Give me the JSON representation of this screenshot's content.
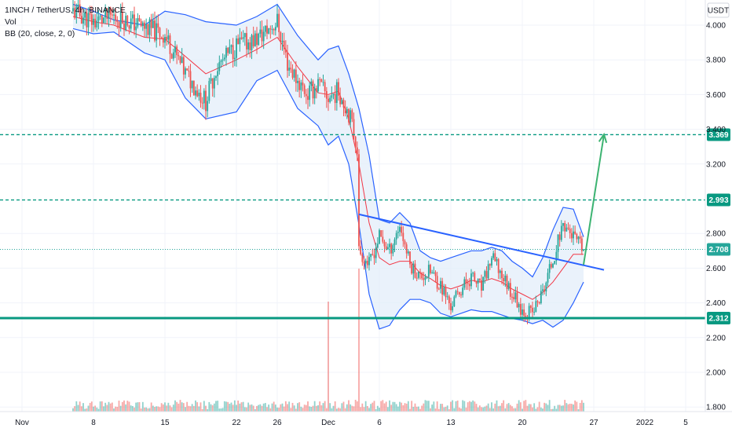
{
  "legend": {
    "symbol": "1INCH / TetherUS, 4h, BINANCE",
    "volume": "Vol",
    "indicator": "BB (20, close, 2, 0)"
  },
  "price_axis": {
    "currency": "USDT",
    "ticks": [
      "4.000",
      "3.800",
      "3.600",
      "3.400",
      "3.200",
      "2.800",
      "2.600",
      "2.400",
      "2.200",
      "2.000",
      "1.800"
    ]
  },
  "date_axis": {
    "ticks": [
      "Nov",
      "8",
      "15",
      "22",
      "26",
      "Dec",
      "6",
      "13",
      "20",
      "27",
      "2022",
      "5"
    ]
  },
  "colors": {
    "up": "#26a69a",
    "down": "#ef5350",
    "bb_band": "#2962ff",
    "bb_basis": "#f23645",
    "bb_fill": "#e3edf9",
    "level_line": "#089981",
    "trendline": "#2962ff",
    "arrow": "#3cb371",
    "current_tag": "#26a69a"
  },
  "chart_data": {
    "type": "candlestick",
    "title": "1INCH / TetherUS, 4h, BINANCE",
    "indicator": "Bollinger Bands (20, close, 2, 0)",
    "ylim": [
      1.77,
      4.07
    ],
    "x_range": [
      "2021-11-01",
      "2022-01-09"
    ],
    "x_ticks": [
      "2021-11-01",
      "2021-11-08",
      "2021-11-15",
      "2021-11-22",
      "2021-11-26",
      "2021-12-01",
      "2021-12-06",
      "2021-12-13",
      "2021-12-20",
      "2021-12-27",
      "2022-01-01",
      "2022-01-05"
    ],
    "price_levels": [
      {
        "label": "3.369",
        "value": 3.369,
        "style": "dashed"
      },
      {
        "label": "2.993",
        "value": 2.993,
        "style": "dashed"
      },
      {
        "label": "2.708",
        "value": 2.708,
        "style": "dotted",
        "current_price": true
      },
      {
        "label": "2.312",
        "value": 2.312,
        "style": "solid"
      }
    ],
    "trendline": {
      "start": [
        "2021-12-04",
        2.91
      ],
      "end": [
        "2021-12-28",
        2.59
      ]
    },
    "projection_arrow": {
      "start": [
        "2021-12-26",
        2.62
      ],
      "end": [
        "2021-12-28",
        3.37
      ]
    },
    "price_path": [
      [
        "2021-11-06",
        4.08
      ],
      [
        "2021-11-08",
        4.02
      ],
      [
        "2021-11-10",
        4.05
      ],
      [
        "2021-11-13",
        3.99
      ],
      [
        "2021-11-15",
        3.94
      ],
      [
        "2021-11-17",
        3.72
      ],
      [
        "2021-11-19",
        3.56
      ],
      [
        "2021-11-20",
        3.75
      ],
      [
        "2021-11-22",
        3.88
      ],
      [
        "2021-11-24",
        3.92
      ],
      [
        "2021-11-26",
        4.02
      ],
      [
        "2021-11-27",
        3.78
      ],
      [
        "2021-11-28",
        3.68
      ],
      [
        "2021-11-29",
        3.6
      ],
      [
        "2021-11-30",
        3.66
      ],
      [
        "2021-12-01",
        3.58
      ],
      [
        "2021-12-02",
        3.62
      ],
      [
        "2021-12-03",
        3.5
      ],
      [
        "2021-12-04",
        3.26
      ],
      [
        "2021-12-04",
        2.7
      ],
      [
        "2021-12-05",
        2.62
      ],
      [
        "2021-12-06",
        2.78
      ],
      [
        "2021-12-07",
        2.7
      ],
      [
        "2021-12-08",
        2.85
      ],
      [
        "2021-12-09",
        2.62
      ],
      [
        "2021-12-10",
        2.55
      ],
      [
        "2021-12-11",
        2.58
      ],
      [
        "2021-12-12",
        2.5
      ],
      [
        "2021-12-13",
        2.38
      ],
      [
        "2021-12-14",
        2.48
      ],
      [
        "2021-12-15",
        2.55
      ],
      [
        "2021-12-16",
        2.48
      ],
      [
        "2021-12-17",
        2.66
      ],
      [
        "2021-12-18",
        2.56
      ],
      [
        "2021-12-19",
        2.46
      ],
      [
        "2021-12-20",
        2.36
      ],
      [
        "2021-12-21",
        2.34
      ],
      [
        "2021-12-22",
        2.46
      ],
      [
        "2021-12-23",
        2.65
      ],
      [
        "2021-12-24",
        2.86
      ],
      [
        "2021-12-25",
        2.78
      ],
      [
        "2021-12-26",
        2.7
      ]
    ],
    "bb_upper_path": [
      [
        "2021-11-06",
        4.12
      ],
      [
        "2021-11-08",
        4.08
      ],
      [
        "2021-11-10",
        4.03
      ],
      [
        "2021-11-13",
        4.0
      ],
      [
        "2021-11-15",
        4.08
      ],
      [
        "2021-11-17",
        4.06
      ],
      [
        "2021-11-19",
        4.02
      ],
      [
        "2021-11-22",
        4.0
      ],
      [
        "2021-11-24",
        4.05
      ],
      [
        "2021-11-26",
        4.12
      ],
      [
        "2021-11-28",
        3.94
      ],
      [
        "2021-11-30",
        3.8
      ],
      [
        "2021-12-01",
        3.86
      ],
      [
        "2021-12-02",
        3.88
      ],
      [
        "2021-12-03",
        3.72
      ],
      [
        "2021-12-04",
        3.52
      ],
      [
        "2021-12-05",
        3.25
      ],
      [
        "2021-12-06",
        2.88
      ],
      [
        "2021-12-07",
        2.86
      ],
      [
        "2021-12-08",
        2.92
      ],
      [
        "2021-12-09",
        2.86
      ],
      [
        "2021-12-10",
        2.7
      ],
      [
        "2021-12-11",
        2.66
      ],
      [
        "2021-12-12",
        2.64
      ],
      [
        "2021-12-13",
        2.66
      ],
      [
        "2021-12-14",
        2.68
      ],
      [
        "2021-12-15",
        2.7
      ],
      [
        "2021-12-16",
        2.7
      ],
      [
        "2021-12-17",
        2.72
      ],
      [
        "2021-12-18",
        2.7
      ],
      [
        "2021-12-19",
        2.64
      ],
      [
        "2021-12-20",
        2.6
      ],
      [
        "2021-12-21",
        2.55
      ],
      [
        "2021-12-22",
        2.66
      ],
      [
        "2021-12-23",
        2.82
      ],
      [
        "2021-12-24",
        2.95
      ],
      [
        "2021-12-25",
        2.94
      ],
      [
        "2021-12-26",
        2.78
      ]
    ],
    "bb_lower_path": [
      [
        "2021-11-06",
        3.98
      ],
      [
        "2021-11-08",
        3.95
      ],
      [
        "2021-11-10",
        3.96
      ],
      [
        "2021-11-13",
        3.84
      ],
      [
        "2021-11-15",
        3.8
      ],
      [
        "2021-11-17",
        3.58
      ],
      [
        "2021-11-19",
        3.46
      ],
      [
        "2021-11-22",
        3.5
      ],
      [
        "2021-11-24",
        3.68
      ],
      [
        "2021-11-26",
        3.74
      ],
      [
        "2021-11-28",
        3.52
      ],
      [
        "2021-11-30",
        3.42
      ],
      [
        "2021-12-01",
        3.31
      ],
      [
        "2021-12-02",
        3.36
      ],
      [
        "2021-12-03",
        3.2
      ],
      [
        "2021-12-04",
        2.85
      ],
      [
        "2021-12-05",
        2.45
      ],
      [
        "2021-12-06",
        2.25
      ],
      [
        "2021-12-07",
        2.27
      ],
      [
        "2021-12-08",
        2.36
      ],
      [
        "2021-12-09",
        2.42
      ],
      [
        "2021-12-10",
        2.42
      ],
      [
        "2021-12-11",
        2.4
      ],
      [
        "2021-12-12",
        2.34
      ],
      [
        "2021-12-13",
        2.32
      ],
      [
        "2021-12-14",
        2.34
      ],
      [
        "2021-12-15",
        2.36
      ],
      [
        "2021-12-16",
        2.35
      ],
      [
        "2021-12-17",
        2.35
      ],
      [
        "2021-12-18",
        2.33
      ],
      [
        "2021-12-19",
        2.31
      ],
      [
        "2021-12-20",
        2.3
      ],
      [
        "2021-12-21",
        2.28
      ],
      [
        "2021-12-22",
        2.3
      ],
      [
        "2021-12-23",
        2.26
      ],
      [
        "2021-12-24",
        2.3
      ],
      [
        "2021-12-25",
        2.4
      ],
      [
        "2021-12-26",
        2.52
      ]
    ],
    "bb_basis_path": [
      [
        "2021-11-06",
        4.05
      ],
      [
        "2021-11-08",
        4.02
      ],
      [
        "2021-11-10",
        4.0
      ],
      [
        "2021-11-13",
        3.93
      ],
      [
        "2021-11-15",
        3.92
      ],
      [
        "2021-11-17",
        3.82
      ],
      [
        "2021-11-19",
        3.72
      ],
      [
        "2021-11-22",
        3.8
      ],
      [
        "2021-11-24",
        3.86
      ],
      [
        "2021-11-26",
        3.93
      ],
      [
        "2021-11-28",
        3.76
      ],
      [
        "2021-11-30",
        3.61
      ],
      [
        "2021-12-01",
        3.6
      ],
      [
        "2021-12-02",
        3.62
      ],
      [
        "2021-12-03",
        3.46
      ],
      [
        "2021-12-04",
        3.2
      ],
      [
        "2021-12-05",
        2.86
      ],
      [
        "2021-12-06",
        2.66
      ],
      [
        "2021-12-07",
        2.62
      ],
      [
        "2021-12-08",
        2.64
      ],
      [
        "2021-12-09",
        2.64
      ],
      [
        "2021-12-10",
        2.57
      ],
      [
        "2021-12-11",
        2.54
      ],
      [
        "2021-12-12",
        2.5
      ],
      [
        "2021-12-13",
        2.48
      ],
      [
        "2021-12-14",
        2.5
      ],
      [
        "2021-12-15",
        2.53
      ],
      [
        "2021-12-16",
        2.52
      ],
      [
        "2021-12-17",
        2.54
      ],
      [
        "2021-12-18",
        2.52
      ],
      [
        "2021-12-19",
        2.48
      ],
      [
        "2021-12-20",
        2.45
      ],
      [
        "2021-12-21",
        2.42
      ],
      [
        "2021-12-22",
        2.46
      ],
      [
        "2021-12-23",
        2.52
      ],
      [
        "2021-12-24",
        2.6
      ],
      [
        "2021-12-25",
        2.68
      ],
      [
        "2021-12-26",
        2.68
      ]
    ],
    "volume": {
      "relative_spikes": [
        [
          "2021-12-01",
          1.0
        ],
        [
          "2021-12-04",
          1.3
        ]
      ]
    }
  }
}
